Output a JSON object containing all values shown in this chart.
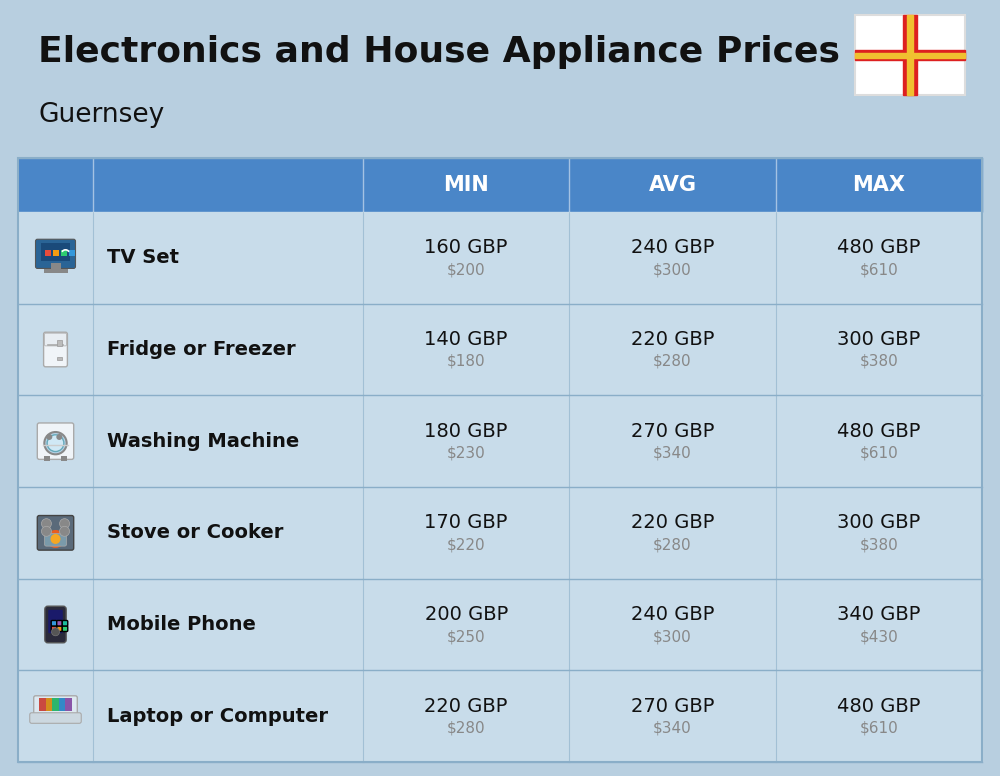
{
  "title": "Electronics and House Appliance Prices",
  "subtitle": "Guernsey",
  "bg_color": "#b8cfe0",
  "header_bg_color": "#4a86c8",
  "header_text_color": "#ffffff",
  "row_bg_color": "#c8dcea",
  "divider_color": "#8aaec8",
  "col_headers": [
    "MIN",
    "AVG",
    "MAX"
  ],
  "items": [
    {
      "name": "TV Set",
      "min_gbp": "160 GBP",
      "min_usd": "$200",
      "avg_gbp": "240 GBP",
      "avg_usd": "$300",
      "max_gbp": "480 GBP",
      "max_usd": "$610"
    },
    {
      "name": "Fridge or Freezer",
      "min_gbp": "140 GBP",
      "min_usd": "$180",
      "avg_gbp": "220 GBP",
      "avg_usd": "$280",
      "max_gbp": "300 GBP",
      "max_usd": "$380"
    },
    {
      "name": "Washing Machine",
      "min_gbp": "180 GBP",
      "min_usd": "$230",
      "avg_gbp": "270 GBP",
      "avg_usd": "$340",
      "max_gbp": "480 GBP",
      "max_usd": "$610"
    },
    {
      "name": "Stove or Cooker",
      "min_gbp": "170 GBP",
      "min_usd": "$220",
      "avg_gbp": "220 GBP",
      "avg_usd": "$280",
      "max_gbp": "300 GBP",
      "max_usd": "$380"
    },
    {
      "name": "Mobile Phone",
      "min_gbp": "200 GBP",
      "min_usd": "$250",
      "avg_gbp": "240 GBP",
      "avg_usd": "$300",
      "max_gbp": "340 GBP",
      "max_usd": "$430"
    },
    {
      "name": "Laptop or Computer",
      "min_gbp": "220 GBP",
      "min_usd": "$280",
      "avg_gbp": "270 GBP",
      "avg_usd": "$340",
      "max_gbp": "480 GBP",
      "max_usd": "$610"
    }
  ],
  "title_fontsize": 26,
  "subtitle_fontsize": 19,
  "header_fontsize": 15,
  "item_name_fontsize": 14,
  "value_fontsize": 14,
  "usd_fontsize": 11
}
